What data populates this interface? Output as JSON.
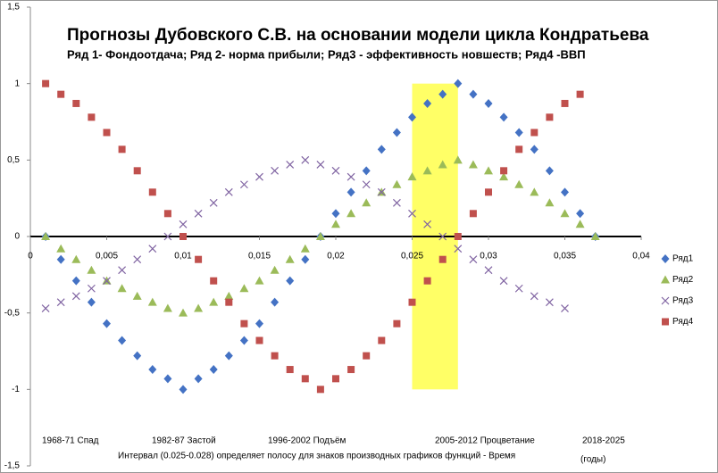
{
  "chart_data": {
    "type": "scatter",
    "title": "Прогнозы Дубовского С.В. на основании модели цикла Кондратьева",
    "subtitle": "Ряд 1- Фондоотдача; Ряд 2- норма прибыли; Ряд3 - эффективность новшеств; Ряд4 -ВВП",
    "x": [
      0.001,
      0.002,
      0.003,
      0.004,
      0.005,
      0.006,
      0.007,
      0.008,
      0.009,
      0.01,
      0.011,
      0.012,
      0.013,
      0.014,
      0.015,
      0.016,
      0.017,
      0.018,
      0.019,
      0.02,
      0.021,
      0.022,
      0.023,
      0.024,
      0.025,
      0.026,
      0.027,
      0.028,
      0.029,
      0.03,
      0.031,
      0.032,
      0.033,
      0.034,
      0.035,
      0.036,
      0.037
    ],
    "series": [
      {
        "name": "Ряд1",
        "color": "#4472c4",
        "marker": "diamond",
        "values": [
          0,
          -0.15,
          -0.29,
          -0.43,
          -0.57,
          -0.68,
          -0.78,
          -0.87,
          -0.93,
          -1,
          -0.93,
          -0.87,
          -0.78,
          -0.68,
          -0.57,
          -0.43,
          -0.29,
          -0.15,
          0,
          0.15,
          0.29,
          0.43,
          0.57,
          0.68,
          0.78,
          0.87,
          0.93,
          1,
          0.93,
          0.87,
          0.78,
          0.68,
          0.57,
          0.43,
          0.29,
          0.15,
          0
        ]
      },
      {
        "name": "Ряд2",
        "color": "#9bbb59",
        "marker": "triangle",
        "values": [
          0,
          -0.08,
          -0.15,
          -0.22,
          -0.29,
          -0.34,
          -0.39,
          -0.43,
          -0.47,
          -0.5,
          -0.47,
          -0.43,
          -0.39,
          -0.34,
          -0.29,
          -0.22,
          -0.15,
          -0.08,
          0,
          0.08,
          0.15,
          0.22,
          0.29,
          0.34,
          0.39,
          0.43,
          0.47,
          0.5,
          0.47,
          0.43,
          0.39,
          0.34,
          0.29,
          0.22,
          0.15,
          0.08,
          0
        ]
      },
      {
        "name": "Ряд3",
        "color": "#8064a2",
        "marker": "cross",
        "values": [
          -0.47,
          -0.43,
          -0.39,
          -0.34,
          -0.29,
          -0.22,
          -0.15,
          -0.08,
          0,
          0.08,
          0.15,
          0.22,
          0.29,
          0.34,
          0.39,
          0.43,
          0.47,
          0.5,
          0.47,
          0.43,
          0.39,
          0.34,
          0.29,
          0.22,
          0.15,
          0.08,
          0,
          -0.08,
          -0.15,
          -0.22,
          -0.29,
          -0.34,
          -0.39,
          -0.43,
          -0.47,
          null,
          null
        ]
      },
      {
        "name": "Ряд4",
        "color": "#c0504d",
        "marker": "square",
        "values": [
          1,
          0.93,
          0.87,
          0.78,
          0.68,
          0.57,
          0.43,
          0.29,
          0.15,
          0,
          -0.15,
          -0.29,
          -0.43,
          -0.57,
          -0.68,
          -0.78,
          -0.87,
          -0.93,
          -1,
          -0.93,
          -0.87,
          -0.78,
          -0.68,
          -0.57,
          -0.43,
          -0.29,
          -0.15,
          0,
          0.15,
          0.29,
          0.43,
          0.57,
          0.68,
          0.78,
          0.87,
          0.93,
          null
        ]
      }
    ],
    "xlim": [
      0,
      0.04
    ],
    "xticks": [
      0,
      {
        "value": 0.005,
        "label": "0,005"
      },
      {
        "value": 0.01,
        "label": "0,01"
      },
      {
        "value": 0.015,
        "label": "0,015"
      },
      {
        "value": 0.02,
        "label": "0,02"
      },
      {
        "value": 0.025,
        "label": "0,025"
      },
      {
        "value": 0.03,
        "label": "0,03"
      },
      {
        "value": 0.035,
        "label": "0,035"
      },
      {
        "value": 0.04,
        "label": "0,04"
      }
    ],
    "ylim": [
      -1.5,
      1.5
    ],
    "yticks": [
      {
        "value": -1.5,
        "label": "-1,5"
      },
      -1,
      {
        "value": -0.5,
        "label": "-0,5"
      },
      0,
      {
        "value": 0.5,
        "label": "0,5"
      },
      1,
      {
        "value": 1.5,
        "label": "1,5"
      }
    ],
    "band": {
      "x": [
        0.025,
        0.028
      ],
      "y": [
        -1,
        1
      ],
      "color": "#ffff66"
    },
    "legend": "right",
    "annotations": [
      "1968-71 Спад",
      "1982-87 Застой",
      "1996-2002  Подъём",
      "2005-2012  Процветание",
      "2018-2025",
      "Интервал (0.025-0.028) определяет полосу для знаков производных графиков функций - Время",
      "(годы)"
    ]
  }
}
